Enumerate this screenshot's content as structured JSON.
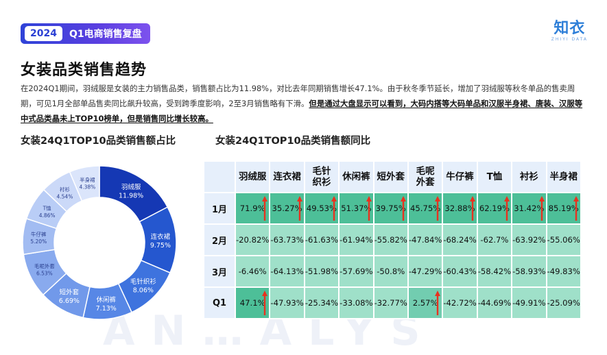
{
  "header": {
    "year": "2024",
    "title": "Q1电商销售复盘",
    "logo": "知衣",
    "logo_sub": "ZHIYI DATA"
  },
  "heading": "女装品类销售趋势",
  "paragraph": {
    "text": "在2024Q1期间，羽绒服是女装的主力销售品类，销售额占比为11.98%，对比去年同期销售增长47.1%。由于秋冬季节延长，增加了羽绒服等秋冬单品的售卖周期，可见1月全部单品售卖同比飙升较高，受到跨季度影响，2至3月销售略有下滑。",
    "highlight": "但是通过大盘显示可以看到，大码内搭等大码单品和汉服半身裙、唐装、汉服等中式品类晶未上TOP10榜单，但是销售同比增长较高。"
  },
  "pie_title": "女装24Q1TOP10品类销售额占比",
  "table_title": "女装24Q1TOP10品类销售额同比",
  "chart_data": [
    {
      "type": "pie",
      "title": "女装24Q1TOP10品类销售额占比",
      "slices": [
        {
          "label": "羽绒服",
          "value": 11.98,
          "pct": "11.98%",
          "color": "#1538b4"
        },
        {
          "label": "连衣裙",
          "value": 9.75,
          "pct": "9.75%",
          "color": "#2557cf"
        },
        {
          "label": "毛针织衫",
          "value": 8.06,
          "pct": "8.06%",
          "color": "#3e73de"
        },
        {
          "label": "休闲裤",
          "value": 7.13,
          "pct": "7.13%",
          "color": "#5787e6"
        },
        {
          "label": "短外套",
          "value": 6.69,
          "pct": "6.69%",
          "color": "#7199ea"
        },
        {
          "label": "毛呢外套",
          "value": 6.53,
          "pct": "6.53%",
          "color": "#89aaee"
        },
        {
          "label": "牛仔裤",
          "value": 5.2,
          "pct": "5.20%",
          "color": "#a2bcf2"
        },
        {
          "label": "T恤",
          "value": 4.86,
          "pct": "4.86%",
          "color": "#b9cdf6"
        },
        {
          "label": "衬衫",
          "value": 4.54,
          "pct": "4.54%",
          "color": "#cbd9f8"
        },
        {
          "label": "半身裙",
          "value": 4.38,
          "pct": "4.38%",
          "color": "#dbe5fb"
        }
      ]
    },
    {
      "type": "table",
      "title": "女装24Q1TOP10品类销售额同比",
      "columns": [
        [
          "羽绒服"
        ],
        [
          "连衣裙"
        ],
        [
          "毛针",
          "织衫"
        ],
        [
          "休闲裤"
        ],
        [
          "短外套"
        ],
        [
          "毛呢",
          "外套"
        ],
        [
          "牛仔裤"
        ],
        [
          "T恤"
        ],
        [
          "衬衫"
        ],
        [
          "半身裙"
        ]
      ],
      "rows": [
        {
          "label": "1月",
          "values": [
            "71.9%",
            "35.27%",
            "49.53%",
            "51.37%",
            "39.75%",
            "45.75%",
            "32.88%",
            "62.19%",
            "31.42%",
            "85.19%"
          ]
        },
        {
          "label": "2月",
          "values": [
            "-20.82%",
            "-63.73%",
            "-61.63%",
            "-61.94%",
            "-55.82%",
            "-47.84%",
            "-68.24%",
            "-62.7%",
            "-63.92%",
            "-55.06%"
          ]
        },
        {
          "label": "3月",
          "values": [
            "-6.46%",
            "-64.13%",
            "-51.98%",
            "-57.69%",
            "-50.8%",
            "-47.29%",
            "-60.43%",
            "-58.42%",
            "-58.93%",
            "-49.83%"
          ]
        },
        {
          "label": "Q1",
          "values": [
            "47.1%",
            "-47.93%",
            "-25.34%",
            "-33.08%",
            "-32.77%",
            "2.57%",
            "-42.72%",
            "-44.69%",
            "-49.91%",
            "-25.09%"
          ]
        }
      ],
      "colors": {
        "positive_strong": "#4dbf98",
        "positive_light": "#72cdb0",
        "negative": "#9fe0c9",
        "arrow": "#e8321f"
      }
    }
  ]
}
